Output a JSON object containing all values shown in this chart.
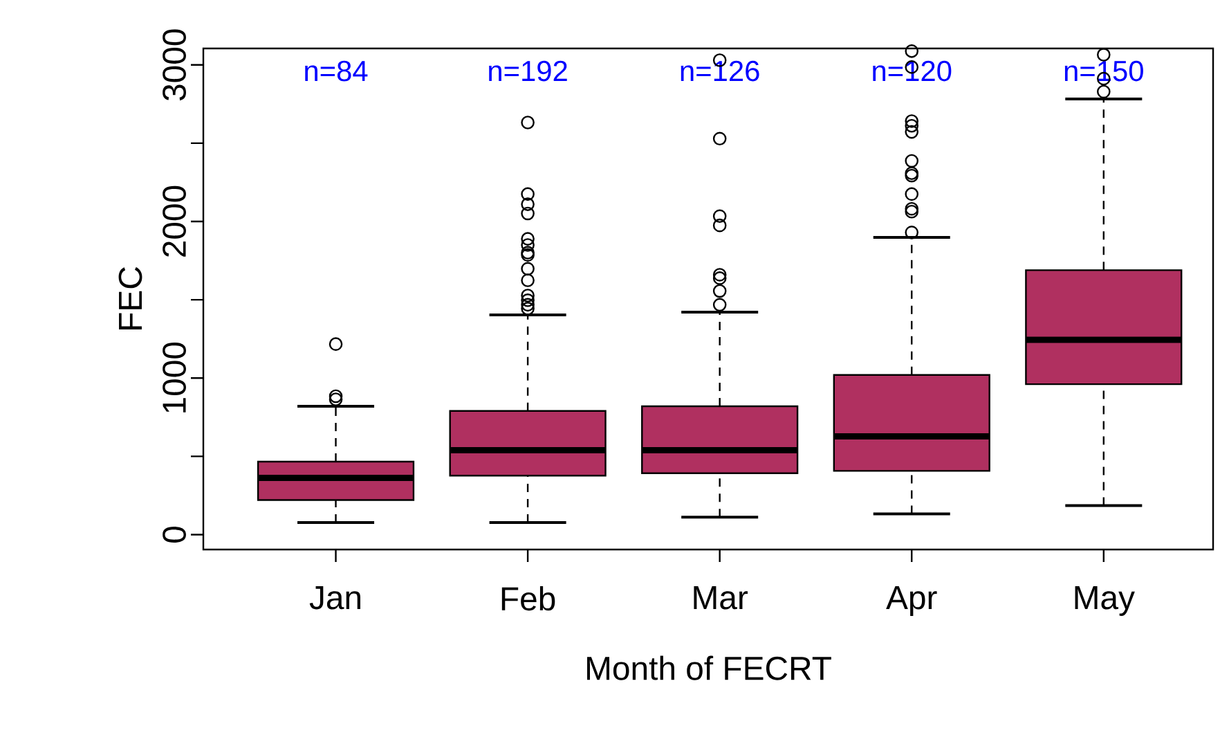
{
  "chart_data": {
    "type": "box",
    "xlabel": "Month of FECRT",
    "ylabel": "FEC",
    "categories": [
      "Jan",
      "Feb",
      "Mar",
      "Apr",
      "May"
    ],
    "ylim": [
      -95,
      3105
    ],
    "yticks": [
      0,
      {
        "value": 500,
        "label": null
      },
      1000,
      {
        "value": 1500,
        "label": null
      },
      2000,
      {
        "value": 2500,
        "label": null
      },
      3000
    ],
    "series": [
      {
        "color": "#b03060",
        "boxes": [
          {
            "low": 77,
            "q1": 221,
            "median": 362,
            "q3": 466,
            "high": 820,
            "outliers": [
              864,
              884,
              1217
            ]
          },
          {
            "low": 77,
            "q1": 377,
            "median": 539,
            "q3": 790,
            "high": 1403,
            "outliers": [
              1444,
              1468,
              1497,
              1527,
              1624,
              1698,
              1786,
              1801,
              1850,
              1889,
              2051,
              2110,
              2175,
              2632
            ]
          },
          {
            "low": 112,
            "q1": 392,
            "median": 539,
            "q3": 820,
            "high": 1421,
            "outliers": [
              1468,
              1556,
              1638,
              1660,
              1975,
              2034,
              2529,
              3030
            ]
          },
          {
            "low": 133,
            "q1": 407,
            "median": 628,
            "q3": 1020,
            "high": 1898,
            "outliers": [
              1930,
              2063,
              2081,
              2175,
              2293,
              2308,
              2387,
              2572,
              2611,
              2641,
              2986,
              3088
            ]
          },
          {
            "low": 186,
            "q1": 961,
            "median": 1244,
            "q3": 1689,
            "high": 2782,
            "outliers": [
              2829,
              2912,
              3065
            ]
          }
        ]
      }
    ],
    "annotations": [
      "n=84",
      "n=192",
      "n=126",
      "n=120",
      "n=150"
    ]
  }
}
